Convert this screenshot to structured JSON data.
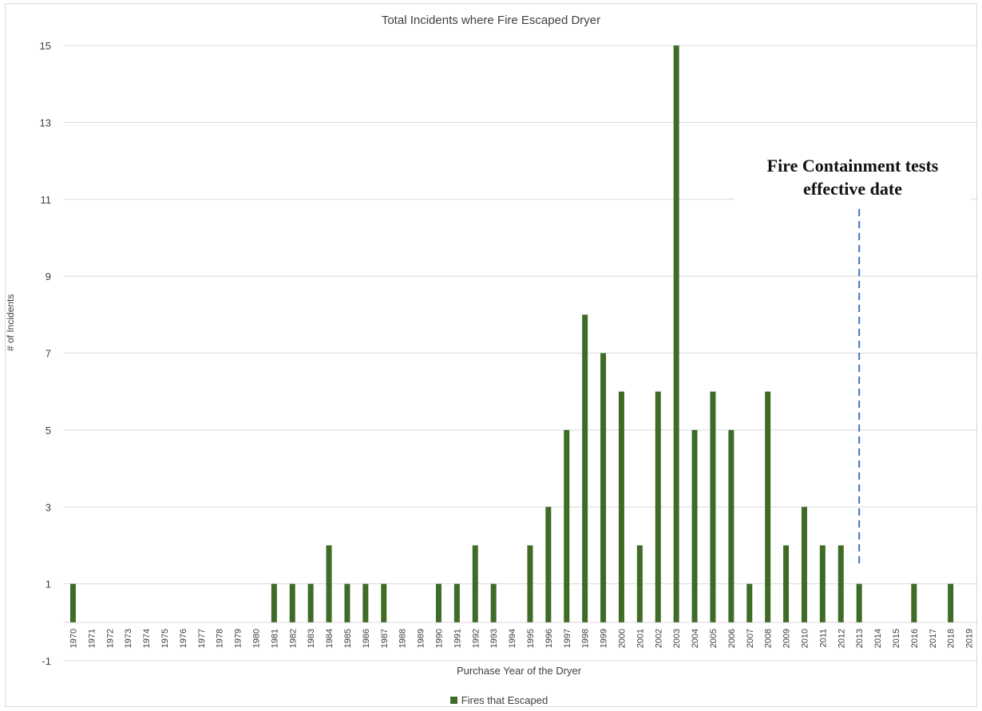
{
  "chart_data": {
    "type": "bar",
    "title": "Total Incidents where Fire Escaped Dryer",
    "xlabel": "Purchase Year of the Dryer",
    "ylabel": "# of Incidents",
    "ylim": [
      -1,
      15
    ],
    "yticks": [
      -1,
      1,
      3,
      5,
      7,
      9,
      11,
      13,
      15
    ],
    "grid": true,
    "legend_position": "bottom",
    "categories": [
      "1970",
      "1971",
      "1972",
      "1973",
      "1974",
      "1975",
      "1976",
      "1977",
      "1978",
      "1979",
      "1980",
      "1981",
      "1982",
      "1983",
      "1984",
      "1985",
      "1986",
      "1987",
      "1988",
      "1989",
      "1990",
      "1991",
      "1992",
      "1993",
      "1994",
      "1995",
      "1996",
      "1997",
      "1998",
      "1999",
      "2000",
      "2001",
      "2002",
      "2003",
      "2004",
      "2005",
      "2006",
      "2007",
      "2008",
      "2009",
      "2010",
      "2011",
      "2012",
      "2013",
      "2014",
      "2015",
      "2016",
      "2017",
      "2018",
      "2019"
    ],
    "series": [
      {
        "name": "Fires that Escaped",
        "color": "#3f6b27",
        "values": [
          1,
          null,
          null,
          null,
          null,
          null,
          null,
          null,
          null,
          null,
          null,
          1,
          1,
          1,
          2,
          1,
          1,
          1,
          null,
          null,
          1,
          1,
          2,
          1,
          null,
          2,
          3,
          5,
          8,
          7,
          6,
          2,
          6,
          15,
          5,
          6,
          5,
          1,
          6,
          2,
          3,
          2,
          2,
          1,
          null,
          null,
          1,
          null,
          1,
          null
        ]
      }
    ],
    "annotation": {
      "text_line1": "Fire Containment tests",
      "text_line2": "effective date",
      "at_category": "2013",
      "line_color": "#4472c4"
    }
  }
}
